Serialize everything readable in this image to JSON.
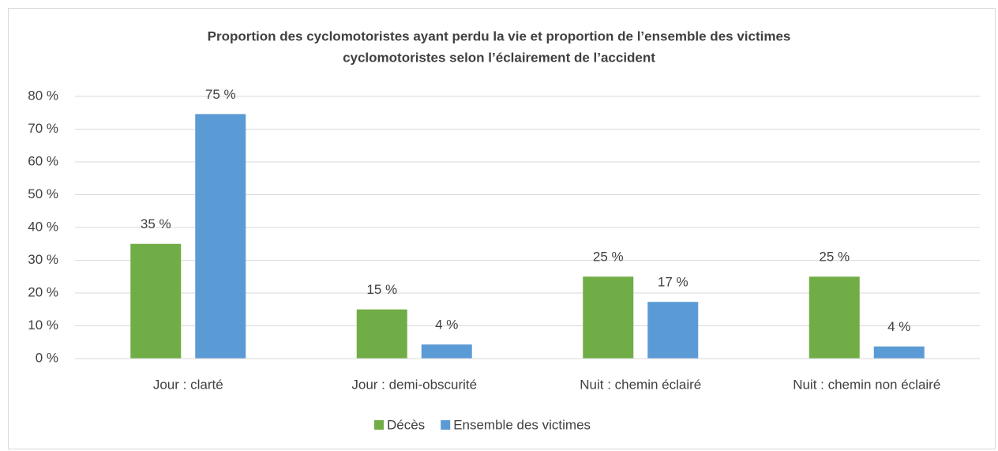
{
  "chart_data": {
    "type": "bar",
    "title": [
      "Proportion des cyclomotoristes ayant perdu la vie et proportion de l’ensemble des victimes",
      "cyclomotoristes selon l’éclairement de l’accident"
    ],
    "categories": [
      "Jour : clarté",
      "Jour : demi-obscurité",
      "Nuit : chemin éclairé",
      "Nuit : chemin non éclairé"
    ],
    "series": [
      {
        "name": "Décès",
        "color": "#70ad47",
        "values": [
          35,
          15,
          25,
          25
        ],
        "value_labels": [
          "35 %",
          "15 %",
          "25 %",
          "25 %"
        ]
      },
      {
        "name": "Ensemble des victimes",
        "color": "#5b9bd5",
        "values": [
          74.6,
          4.3,
          17.3,
          3.7
        ],
        "value_labels": [
          "75 %",
          "4 %",
          "17 %",
          "4 %"
        ]
      }
    ],
    "ylim": [
      0,
      80
    ],
    "yticks": [
      {
        "value": 0,
        "label": "0 %"
      },
      {
        "value": 10,
        "label": "10 %"
      },
      {
        "value": 20,
        "label": "20 %"
      },
      {
        "value": 30,
        "label": "30 %"
      },
      {
        "value": 40,
        "label": "40 %"
      },
      {
        "value": 50,
        "label": "50 %"
      },
      {
        "value": 60,
        "label": "60 %"
      },
      {
        "value": 70,
        "label": "70 %"
      },
      {
        "value": 80,
        "label": "80 %"
      }
    ],
    "grid": true,
    "legend": "bottom"
  }
}
